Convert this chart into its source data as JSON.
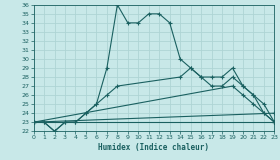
{
  "xlabel": "Humidex (Indice chaleur)",
  "bg_color": "#c8e8e8",
  "grid_color": "#aed4d4",
  "line_color": "#1a6060",
  "xlim": [
    0,
    23
  ],
  "ylim": [
    22,
    36
  ],
  "xticks": [
    0,
    1,
    2,
    3,
    4,
    5,
    6,
    7,
    8,
    9,
    10,
    11,
    12,
    13,
    14,
    15,
    16,
    17,
    18,
    19,
    20,
    21,
    22,
    23
  ],
  "yticks": [
    22,
    23,
    24,
    25,
    26,
    27,
    28,
    29,
    30,
    31,
    32,
    33,
    34,
    35,
    36
  ],
  "series1_x": [
    0,
    1,
    2,
    3,
    4,
    5,
    6,
    7,
    8,
    9,
    10,
    11,
    12,
    13,
    14,
    15,
    16,
    17,
    18,
    19,
    20,
    21,
    22,
    23
  ],
  "series1_y": [
    23,
    23,
    22,
    23,
    23,
    24,
    25,
    29,
    36,
    34,
    34,
    35,
    35,
    34,
    30,
    29,
    28,
    27,
    27,
    28,
    27,
    26,
    24,
    23
  ],
  "series2_x": [
    0,
    1,
    2,
    3,
    4,
    5,
    6,
    7,
    8,
    14,
    15,
    16,
    17,
    18,
    19,
    20,
    21,
    22,
    23
  ],
  "series2_y": [
    23,
    23,
    22,
    23,
    23,
    24,
    25,
    26,
    27,
    28,
    29,
    28,
    28,
    28,
    29,
    27,
    26,
    25,
    23
  ],
  "series3_x": [
    0,
    23
  ],
  "series3_y": [
    23,
    23
  ],
  "series4_x": [
    0,
    19,
    20,
    21,
    22,
    23
  ],
  "series4_y": [
    23,
    27,
    26,
    25,
    24,
    23
  ],
  "series5_x": [
    0,
    23
  ],
  "series5_y": [
    23,
    24
  ]
}
